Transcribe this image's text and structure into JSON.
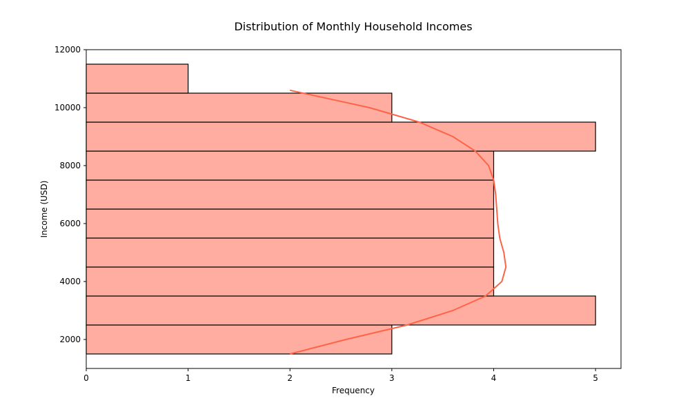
{
  "chart_data": {
    "type": "bar",
    "orientation": "horizontal",
    "title": "Distribution of Monthly Household Incomes",
    "xlabel": "Frequency",
    "ylabel": "Income (USD)",
    "xlim": [
      0,
      5.25
    ],
    "ylim": [
      1000,
      12000
    ],
    "xticks": [
      0,
      1,
      2,
      3,
      4,
      5
    ],
    "yticks": [
      2000,
      4000,
      6000,
      8000,
      10000,
      12000
    ],
    "bins": [
      {
        "from": 1500,
        "to": 2500,
        "count": 3
      },
      {
        "from": 2500,
        "to": 3500,
        "count": 5
      },
      {
        "from": 3500,
        "to": 4500,
        "count": 4
      },
      {
        "from": 4500,
        "to": 5500,
        "count": 4
      },
      {
        "from": 5500,
        "to": 6500,
        "count": 4
      },
      {
        "from": 6500,
        "to": 7500,
        "count": 4
      },
      {
        "from": 7500,
        "to": 8500,
        "count": 4
      },
      {
        "from": 8500,
        "to": 9500,
        "count": 5
      },
      {
        "from": 9500,
        "to": 10500,
        "count": 3
      },
      {
        "from": 10500,
        "to": 11500,
        "count": 1
      }
    ],
    "kde_curve": [
      {
        "income": 1500,
        "frequency": 2.0
      },
      {
        "income": 2000,
        "frequency": 2.55
      },
      {
        "income": 2500,
        "frequency": 3.15
      },
      {
        "income": 3000,
        "frequency": 3.6
      },
      {
        "income": 3500,
        "frequency": 3.92
      },
      {
        "income": 4000,
        "frequency": 4.08
      },
      {
        "income": 4500,
        "frequency": 4.12
      },
      {
        "income": 5000,
        "frequency": 4.1
      },
      {
        "income": 5500,
        "frequency": 4.06
      },
      {
        "income": 6000,
        "frequency": 4.04
      },
      {
        "income": 6500,
        "frequency": 4.03
      },
      {
        "income": 7000,
        "frequency": 4.02
      },
      {
        "income": 7500,
        "frequency": 4.0
      },
      {
        "income": 8000,
        "frequency": 3.95
      },
      {
        "income": 8500,
        "frequency": 3.82
      },
      {
        "income": 9000,
        "frequency": 3.6
      },
      {
        "income": 9500,
        "frequency": 3.27
      },
      {
        "income": 10000,
        "frequency": 2.78
      },
      {
        "income": 10600,
        "frequency": 2.0
      }
    ],
    "grid": false,
    "colors": {
      "bar_fill": "#ffada0",
      "bar_edge": "#000000",
      "kde_line": "#ff6347"
    }
  }
}
